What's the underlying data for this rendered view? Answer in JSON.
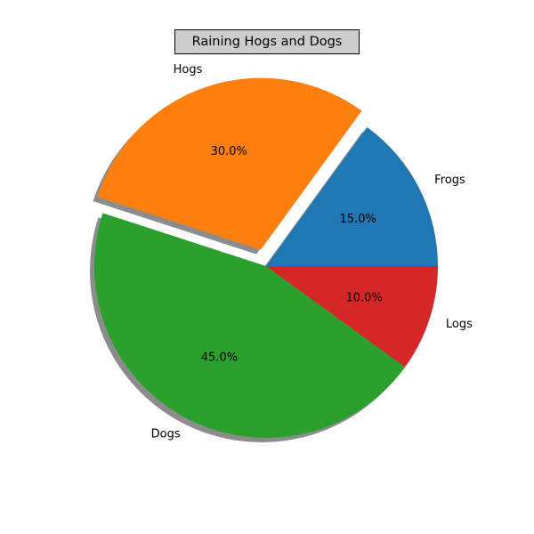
{
  "chart_data": {
    "type": "pie",
    "title": "Raining Hogs and Dogs",
    "categories": [
      "Frogs",
      "Hogs",
      "Dogs",
      "Logs"
    ],
    "values": [
      15,
      30,
      45,
      10
    ],
    "percent_labels": [
      "15.0%",
      "30.0%",
      "45.0%",
      "10.0%"
    ],
    "colors": [
      "#1f77b4",
      "#ff7f0e",
      "#2ca02c",
      "#d62728"
    ],
    "explode": [
      0,
      0.1,
      0,
      0
    ],
    "shadow": true,
    "start_angle": 0,
    "direction": "counterclockwise",
    "title_box_color": "#cccccc"
  }
}
